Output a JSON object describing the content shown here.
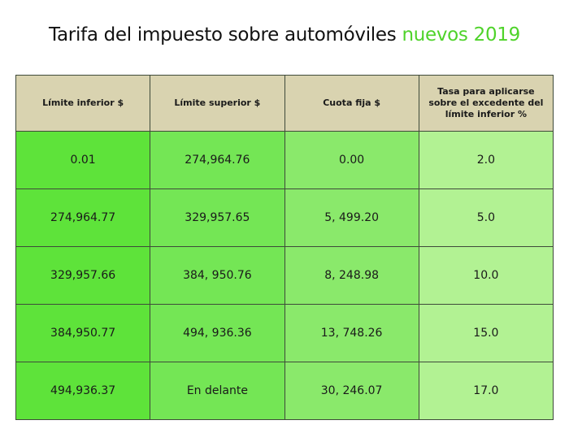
{
  "title": {
    "main": "Tarifa del impuesto sobre automóviles",
    "accent": "nuevos 2019",
    "accent_color": "#4fd32a"
  },
  "table": {
    "headers": [
      "Límite inferior $",
      "Límite superior $",
      "Cuota fija $",
      "Tasa para aplicarse sobre el excedente del límite inferior %"
    ],
    "rows": [
      [
        "0.01",
        "274,964.76",
        "0.00",
        "2.0"
      ],
      [
        "274,964.77",
        "329,957.65",
        "5, 499.20",
        "5.0"
      ],
      [
        "329,957.66",
        "384, 950.76",
        "8, 248.98",
        "10.0"
      ],
      [
        "384,950.77",
        "494, 936.36",
        "13, 748.26",
        "15.0"
      ],
      [
        "494,936.37",
        "En delante",
        "30, 246.07",
        "17.0"
      ]
    ],
    "colors": {
      "header_bg": "#d9d3b0",
      "col1_bg": "#5ee33a",
      "col2_bg": "#74e655",
      "col3_bg": "#8ae96b",
      "col4_bg": "#b2f293"
    }
  }
}
